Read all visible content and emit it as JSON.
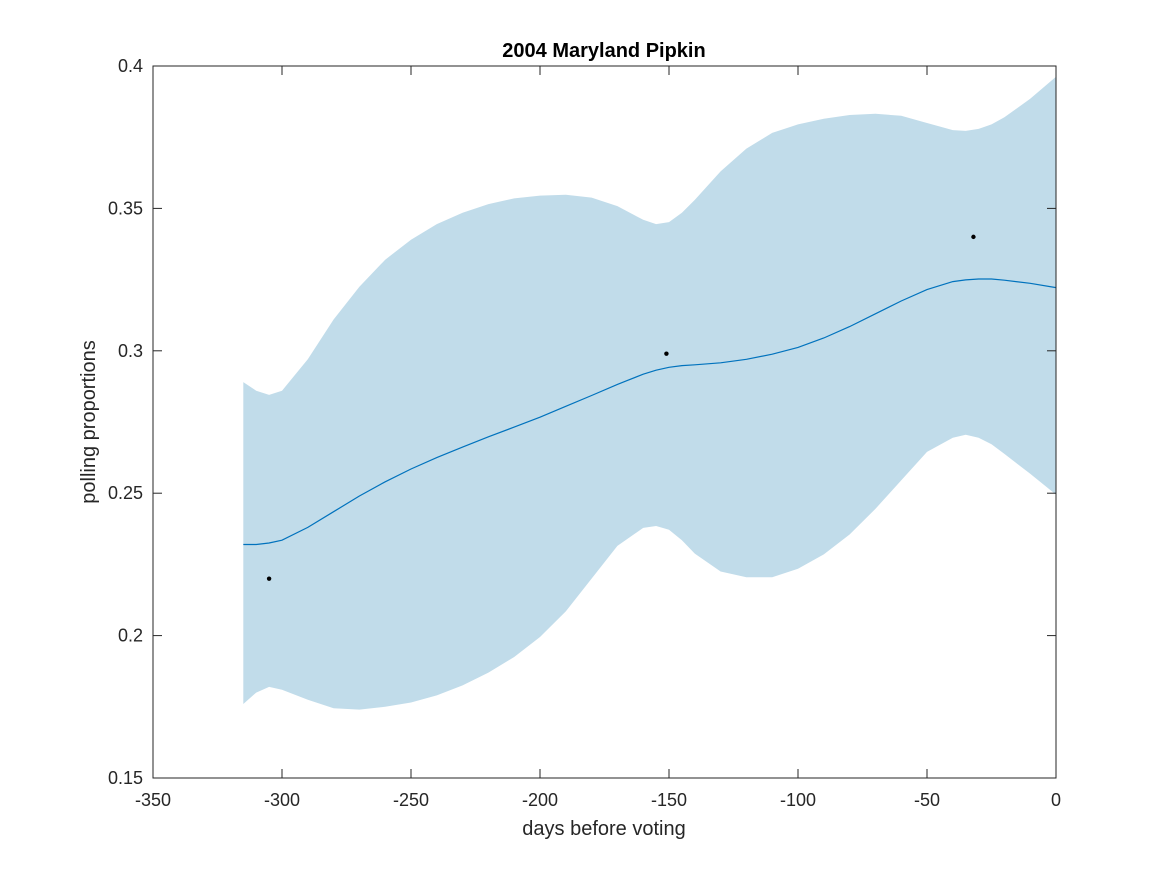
{
  "chart_data": {
    "type": "line",
    "title": "2004 Maryland Pipkin",
    "xlabel": "days before voting",
    "ylabel": "polling proportions",
    "xlim": [
      -350,
      0
    ],
    "ylim": [
      0.15,
      0.4
    ],
    "xticks": [
      -350,
      -300,
      -250,
      -200,
      -150,
      -100,
      -50,
      0
    ],
    "yticks": [
      0.15,
      0.2,
      0.25,
      0.3,
      0.35,
      0.4
    ],
    "xtick_labels": [
      "-350",
      "-300",
      "-250",
      "-200",
      "-150",
      "-100",
      "-50",
      "0"
    ],
    "ytick_labels": [
      "0.15",
      "0.2",
      "0.25",
      "0.3",
      "0.35",
      "0.4"
    ],
    "grid": false,
    "colors": {
      "mean_line": "#0072BD",
      "band_fill": "#c1dcea",
      "points": "#000000",
      "axes": "#262626"
    },
    "series": [
      {
        "kind": "line",
        "x": [
          -315,
          -310,
          -305,
          -300,
          -290,
          -280,
          -270,
          -260,
          -250,
          -240,
          -230,
          -220,
          -210,
          -200,
          -190,
          -180,
          -170,
          -160,
          -155,
          -150,
          -145,
          -140,
          -130,
          -120,
          -110,
          -100,
          -90,
          -80,
          -70,
          -60,
          -50,
          -40,
          -35,
          -30,
          -25,
          -20,
          -10,
          0
        ],
        "y": [
          0.232,
          0.232,
          0.2325,
          0.2335,
          0.238,
          0.2435,
          0.249,
          0.254,
          0.2585,
          0.2625,
          0.2662,
          0.2698,
          0.2732,
          0.2767,
          0.2805,
          0.2843,
          0.2882,
          0.2918,
          0.2932,
          0.2942,
          0.2948,
          0.2951,
          0.2958,
          0.297,
          0.2988,
          0.3012,
          0.3045,
          0.3085,
          0.313,
          0.3175,
          0.3215,
          0.3243,
          0.3249,
          0.3252,
          0.3252,
          0.3248,
          0.3237,
          0.3222
        ]
      },
      {
        "kind": "band",
        "x": [
          -315,
          -310,
          -305,
          -300,
          -290,
          -280,
          -270,
          -260,
          -250,
          -240,
          -230,
          -220,
          -210,
          -200,
          -190,
          -180,
          -170,
          -160,
          -155,
          -150,
          -145,
          -140,
          -130,
          -120,
          -110,
          -100,
          -90,
          -80,
          -70,
          -60,
          -50,
          -40,
          -35,
          -30,
          -25,
          -20,
          -10,
          0
        ],
        "upper": [
          0.289,
          0.286,
          0.2845,
          0.286,
          0.297,
          0.311,
          0.3225,
          0.332,
          0.339,
          0.3445,
          0.3485,
          0.3515,
          0.3535,
          0.3545,
          0.3548,
          0.3538,
          0.3508,
          0.346,
          0.3445,
          0.3452,
          0.3485,
          0.353,
          0.363,
          0.371,
          0.3765,
          0.3795,
          0.3815,
          0.3828,
          0.3832,
          0.3825,
          0.38,
          0.3775,
          0.3772,
          0.3779,
          0.3795,
          0.382,
          0.3885,
          0.3962
        ],
        "lower": [
          0.176,
          0.18,
          0.182,
          0.181,
          0.1775,
          0.1745,
          0.174,
          0.175,
          0.1765,
          0.179,
          0.1825,
          0.187,
          0.1925,
          0.1995,
          0.2085,
          0.22,
          0.2315,
          0.2378,
          0.2385,
          0.2372,
          0.2335,
          0.2288,
          0.2225,
          0.2205,
          0.2205,
          0.2235,
          0.2285,
          0.2355,
          0.2445,
          0.2545,
          0.2645,
          0.2695,
          0.2705,
          0.2695,
          0.2672,
          0.2638,
          0.2568,
          0.2495
        ]
      },
      {
        "kind": "scatter",
        "x": [
          -305,
          -151,
          -32
        ],
        "y": [
          0.22,
          0.299,
          0.34
        ]
      }
    ]
  }
}
